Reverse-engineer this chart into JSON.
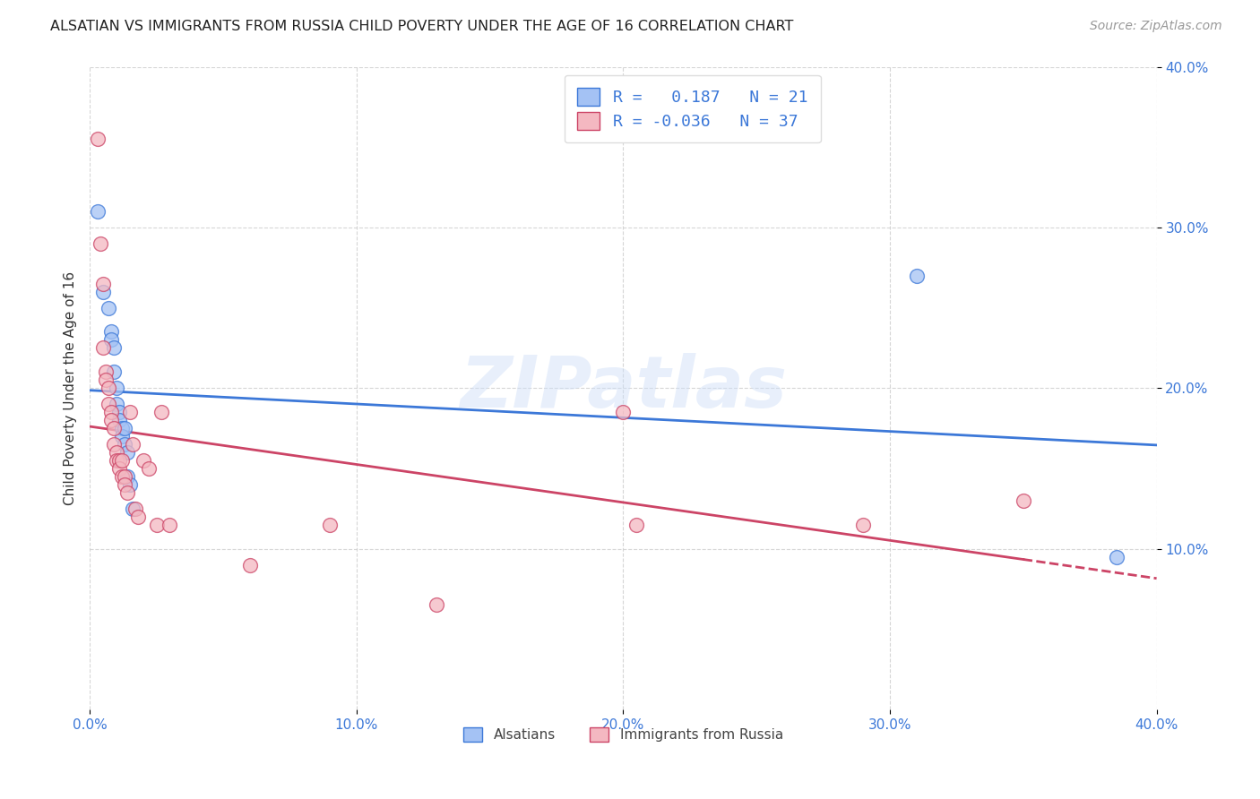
{
  "title": "ALSATIAN VS IMMIGRANTS FROM RUSSIA CHILD POVERTY UNDER THE AGE OF 16 CORRELATION CHART",
  "source": "Source: ZipAtlas.com",
  "ylabel": "Child Poverty Under the Age of 16",
  "xlim": [
    0.0,
    0.4
  ],
  "ylim": [
    0.0,
    0.4
  ],
  "ytick_values": [
    0.1,
    0.2,
    0.3,
    0.4
  ],
  "xtick_values": [
    0.0,
    0.1,
    0.2,
    0.3,
    0.4
  ],
  "legend_label1": "R =   0.187   N = 21",
  "legend_label2": "R = -0.036   N = 37",
  "legend_series1": "Alsatians",
  "legend_series2": "Immigrants from Russia",
  "color_blue": "#a4c2f4",
  "color_pink": "#f4b8c1",
  "color_blue_line": "#3c78d8",
  "color_pink_line": "#cc4466",
  "watermark": "ZIPatlas",
  "blue_points": [
    [
      0.003,
      0.31
    ],
    [
      0.005,
      0.26
    ],
    [
      0.007,
      0.25
    ],
    [
      0.008,
      0.235
    ],
    [
      0.008,
      0.23
    ],
    [
      0.009,
      0.225
    ],
    [
      0.009,
      0.21
    ],
    [
      0.01,
      0.2
    ],
    [
      0.01,
      0.19
    ],
    [
      0.011,
      0.185
    ],
    [
      0.011,
      0.18
    ],
    [
      0.012,
      0.175
    ],
    [
      0.012,
      0.17
    ],
    [
      0.013,
      0.175
    ],
    [
      0.013,
      0.165
    ],
    [
      0.014,
      0.16
    ],
    [
      0.014,
      0.145
    ],
    [
      0.015,
      0.14
    ],
    [
      0.016,
      0.125
    ],
    [
      0.31,
      0.27
    ],
    [
      0.385,
      0.095
    ]
  ],
  "pink_points": [
    [
      0.003,
      0.355
    ],
    [
      0.004,
      0.29
    ],
    [
      0.005,
      0.265
    ],
    [
      0.005,
      0.225
    ],
    [
      0.006,
      0.21
    ],
    [
      0.006,
      0.205
    ],
    [
      0.007,
      0.2
    ],
    [
      0.007,
      0.19
    ],
    [
      0.008,
      0.185
    ],
    [
      0.008,
      0.18
    ],
    [
      0.009,
      0.175
    ],
    [
      0.009,
      0.165
    ],
    [
      0.01,
      0.16
    ],
    [
      0.01,
      0.155
    ],
    [
      0.011,
      0.155
    ],
    [
      0.011,
      0.15
    ],
    [
      0.012,
      0.155
    ],
    [
      0.012,
      0.145
    ],
    [
      0.013,
      0.145
    ],
    [
      0.013,
      0.14
    ],
    [
      0.014,
      0.135
    ],
    [
      0.015,
      0.185
    ],
    [
      0.016,
      0.165
    ],
    [
      0.017,
      0.125
    ],
    [
      0.018,
      0.12
    ],
    [
      0.02,
      0.155
    ],
    [
      0.022,
      0.15
    ],
    [
      0.025,
      0.115
    ],
    [
      0.027,
      0.185
    ],
    [
      0.03,
      0.115
    ],
    [
      0.06,
      0.09
    ],
    [
      0.09,
      0.115
    ],
    [
      0.13,
      0.065
    ],
    [
      0.2,
      0.185
    ],
    [
      0.205,
      0.115
    ],
    [
      0.29,
      0.115
    ],
    [
      0.35,
      0.13
    ]
  ]
}
